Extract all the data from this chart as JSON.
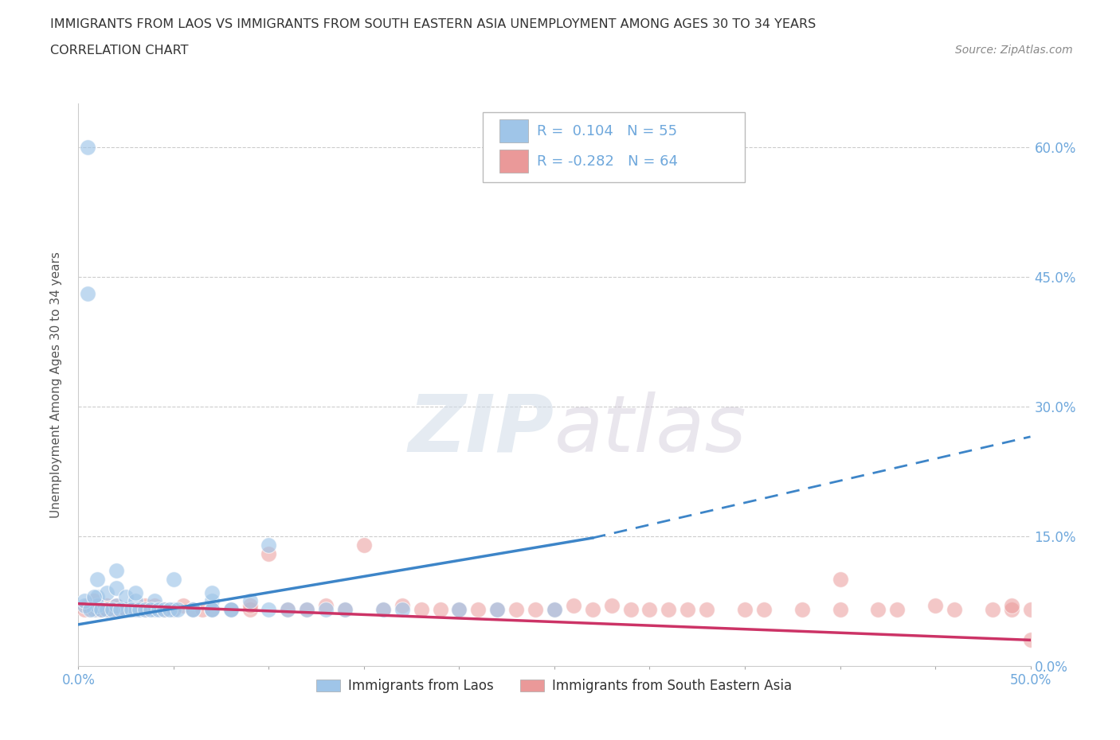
{
  "title_line1": "IMMIGRANTS FROM LAOS VS IMMIGRANTS FROM SOUTH EASTERN ASIA UNEMPLOYMENT AMONG AGES 30 TO 34 YEARS",
  "title_line2": "CORRELATION CHART",
  "source_text": "Source: ZipAtlas.com",
  "ylabel": "Unemployment Among Ages 30 to 34 years",
  "xlim": [
    0.0,
    0.5
  ],
  "ylim": [
    0.0,
    0.65
  ],
  "xtick_positions": [
    0.0,
    0.05,
    0.1,
    0.15,
    0.2,
    0.25,
    0.3,
    0.35,
    0.4,
    0.45,
    0.5
  ],
  "xtick_labels": [
    "0.0%",
    "",
    "",
    "",
    "",
    "",
    "",
    "",
    "",
    "",
    "50.0%"
  ],
  "ytick_positions": [
    0.0,
    0.15,
    0.3,
    0.45,
    0.6
  ],
  "ytick_labels": [
    "0.0%",
    "15.0%",
    "30.0%",
    "45.0%",
    "60.0%"
  ],
  "blue_color": "#9fc5e8",
  "pink_color": "#ea9999",
  "blue_line_color": "#3d85c8",
  "pink_line_color": "#cc3366",
  "tick_label_color": "#6fa8dc",
  "grid_color": "#cccccc",
  "watermark_zip": "ZIP",
  "watermark_atlas": "atlas",
  "r_blue": 0.104,
  "n_blue": 55,
  "r_pink": -0.282,
  "n_pink": 64,
  "blue_line_x_start": 0.0,
  "blue_line_x_solid_end": 0.27,
  "blue_line_x_end": 0.5,
  "blue_line_y_start": 0.048,
  "blue_line_y_solid_end": 0.148,
  "blue_line_y_end": 0.265,
  "pink_line_x_start": 0.0,
  "pink_line_x_end": 0.5,
  "pink_line_y_start": 0.072,
  "pink_line_y_end": 0.03,
  "blue_x": [
    0.005,
    0.005,
    0.008,
    0.01,
    0.01,
    0.01,
    0.015,
    0.015,
    0.02,
    0.02,
    0.02,
    0.025,
    0.025,
    0.03,
    0.03,
    0.03,
    0.04,
    0.04,
    0.05,
    0.05,
    0.06,
    0.07,
    0.07,
    0.07,
    0.08,
    0.09,
    0.1,
    0.1,
    0.11,
    0.12,
    0.13,
    0.14,
    0.16,
    0.17,
    0.2,
    0.22,
    0.25,
    0.003,
    0.003,
    0.006,
    0.008,
    0.012,
    0.018,
    0.022,
    0.028,
    0.032,
    0.035,
    0.038,
    0.042,
    0.045,
    0.048,
    0.052,
    0.06,
    0.07,
    0.08
  ],
  "blue_y": [
    0.6,
    0.43,
    0.065,
    0.07,
    0.08,
    0.1,
    0.065,
    0.085,
    0.07,
    0.09,
    0.11,
    0.065,
    0.08,
    0.065,
    0.075,
    0.085,
    0.065,
    0.075,
    0.065,
    0.1,
    0.065,
    0.065,
    0.075,
    0.085,
    0.065,
    0.075,
    0.065,
    0.14,
    0.065,
    0.065,
    0.065,
    0.065,
    0.065,
    0.065,
    0.065,
    0.065,
    0.065,
    0.07,
    0.075,
    0.065,
    0.08,
    0.065,
    0.065,
    0.065,
    0.065,
    0.065,
    0.065,
    0.065,
    0.065,
    0.065,
    0.065,
    0.065,
    0.065,
    0.065,
    0.065
  ],
  "pink_x": [
    0.003,
    0.005,
    0.007,
    0.008,
    0.01,
    0.01,
    0.012,
    0.015,
    0.015,
    0.02,
    0.02,
    0.025,
    0.03,
    0.035,
    0.035,
    0.04,
    0.04,
    0.045,
    0.05,
    0.055,
    0.06,
    0.065,
    0.07,
    0.08,
    0.09,
    0.09,
    0.1,
    0.11,
    0.12,
    0.13,
    0.14,
    0.15,
    0.16,
    0.17,
    0.18,
    0.19,
    0.2,
    0.21,
    0.22,
    0.23,
    0.24,
    0.25,
    0.26,
    0.27,
    0.28,
    0.29,
    0.3,
    0.31,
    0.32,
    0.33,
    0.35,
    0.36,
    0.38,
    0.4,
    0.4,
    0.42,
    0.43,
    0.45,
    0.46,
    0.48,
    0.49,
    0.49,
    0.5,
    0.5
  ],
  "pink_y": [
    0.065,
    0.07,
    0.065,
    0.075,
    0.065,
    0.07,
    0.065,
    0.065,
    0.07,
    0.065,
    0.07,
    0.065,
    0.065,
    0.065,
    0.07,
    0.065,
    0.07,
    0.065,
    0.065,
    0.07,
    0.065,
    0.065,
    0.065,
    0.065,
    0.065,
    0.07,
    0.13,
    0.065,
    0.065,
    0.07,
    0.065,
    0.14,
    0.065,
    0.07,
    0.065,
    0.065,
    0.065,
    0.065,
    0.065,
    0.065,
    0.065,
    0.065,
    0.07,
    0.065,
    0.07,
    0.065,
    0.065,
    0.065,
    0.065,
    0.065,
    0.065,
    0.065,
    0.065,
    0.065,
    0.1,
    0.065,
    0.065,
    0.07,
    0.065,
    0.065,
    0.065,
    0.07,
    0.065,
    0.03
  ],
  "background_color": "#ffffff"
}
